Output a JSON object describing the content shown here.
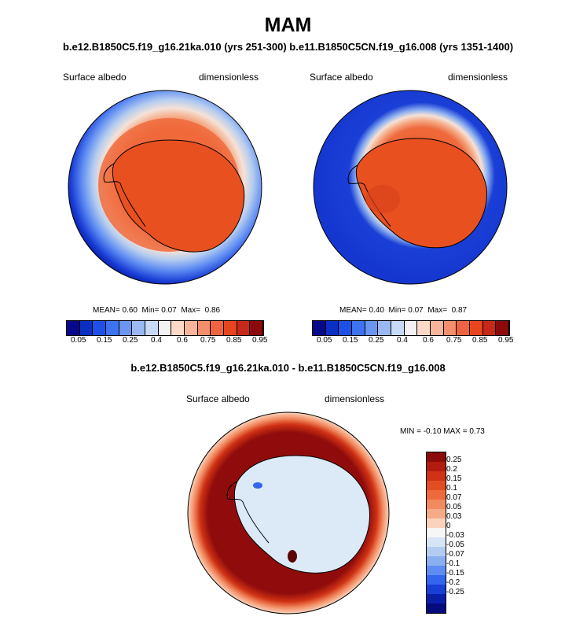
{
  "title": "MAM",
  "top_subtitle": "b.e12.B1850C5.f19_g16.21ka.010 (yrs 251-300) b.e11.B1850C5CN.f19_g16.008 (yrs 1351-1400)",
  "bottom_subtitle": "b.e12.B1850C5.f19_g16.21ka.010 - b.e11.B1850C5CN.f19_g16.008",
  "panels": [
    {
      "variable": "Surface albedo",
      "units": "dimensionless",
      "stats": {
        "mean_label": "MEAN=",
        "mean": "0.60",
        "min_label": "Min=",
        "min": "0.07",
        "max_label": "Max=",
        "max": "0.86"
      }
    },
    {
      "variable": "Surface albedo",
      "units": "dimensionless",
      "stats": {
        "mean_label": "MEAN=",
        "mean": "0.40",
        "min_label": "Min=",
        "min": "0.07",
        "max_label": "Max=",
        "max": "0.87"
      }
    },
    {
      "variable": "Surface albedo",
      "units": "dimensionless",
      "stats": {
        "text": "MIN =  -0.10 MAX =   0.73"
      }
    }
  ],
  "horizontal_colorbar": {
    "colors": [
      "#08088a",
      "#0b2ec4",
      "#1c50e6",
      "#3d72f0",
      "#6a96f2",
      "#9ab8f2",
      "#c8daf5",
      "#f2f2f2",
      "#fcd9c8",
      "#f9b59a",
      "#f58e6c",
      "#ef6440",
      "#e8451f",
      "#c8281a",
      "#8c0a0a"
    ],
    "tick_labels": [
      "0.05",
      "0.15",
      "0.25",
      "0.4",
      "0.6",
      "0.75",
      "0.85",
      "0.95"
    ]
  },
  "vertical_colorbar": {
    "colors": [
      "#8c0a0a",
      "#b21b10",
      "#cf3214",
      "#e34d22",
      "#ee6a3c",
      "#f28a60",
      "#f6ab88",
      "#fad3bc",
      "#f6f6f6",
      "#d6e6f6",
      "#b4ccf0",
      "#8aaef0",
      "#5e8cf2",
      "#3365ee",
      "#1a3fd6",
      "#0a1ea8",
      "#050a7e"
    ],
    "tick_labels": [
      "0.25",
      "0.2",
      "0.15",
      "0.1",
      "0.07",
      "0.05",
      "0.03",
      "0",
      "-0.03",
      "-0.05",
      "-0.07",
      "-0.1",
      "-0.15",
      "-0.2",
      "-0.25"
    ]
  },
  "colors": {
    "land_albedo": "#e9501f",
    "land_dark": "#d8421b",
    "ice_mid": "#f58e6c",
    "ocean_deep": "#1537d0",
    "diff_red": "#900c0c",
    "diff_land": "#dce9f7"
  }
}
